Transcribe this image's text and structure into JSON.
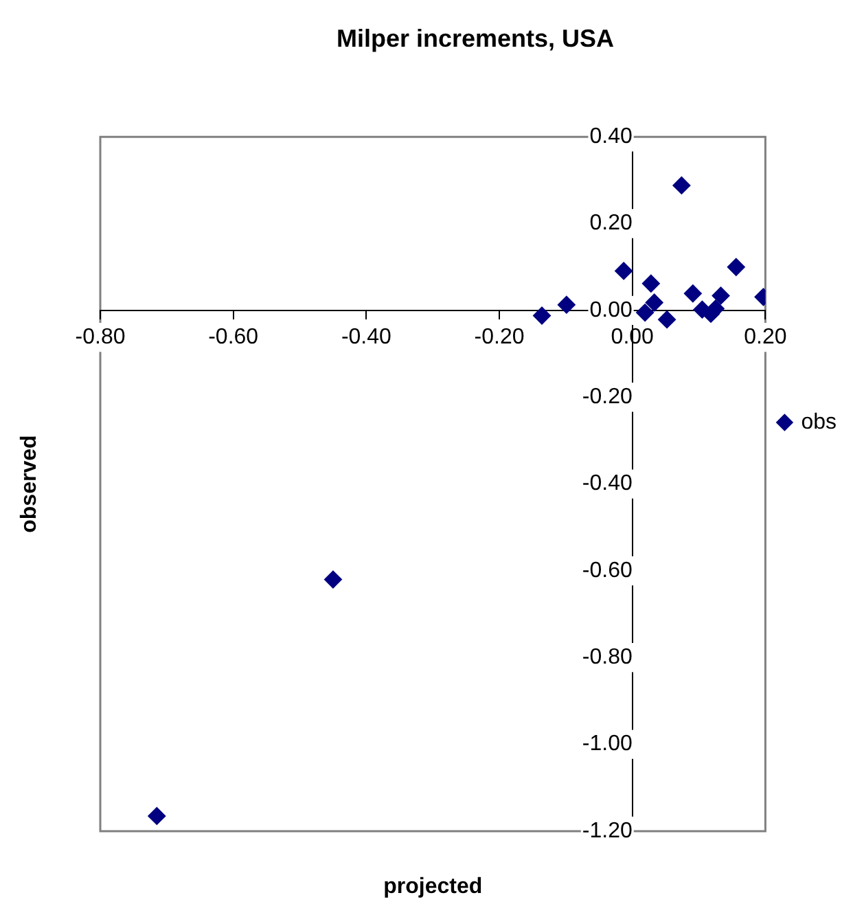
{
  "chart_data": {
    "type": "scatter",
    "title": "Milper increments, USA",
    "xlabel": "projected",
    "ylabel": "observed",
    "xlim": [
      -0.8,
      0.2
    ],
    "ylim": [
      -1.2,
      0.4
    ],
    "xticks": [
      {
        "value": -0.8,
        "label": "-0.80"
      },
      {
        "value": -0.6,
        "label": "-0.60"
      },
      {
        "value": -0.4,
        "label": "-0.40"
      },
      {
        "value": -0.2,
        "label": "-0.20"
      },
      {
        "value": 0,
        "label": "0.00"
      },
      {
        "value": 0.2,
        "label": "0.20"
      }
    ],
    "yticks": [
      {
        "value": -1.2,
        "label": "-1.20"
      },
      {
        "value": -1,
        "label": "-1.00"
      },
      {
        "value": -0.8,
        "label": "-0.80"
      },
      {
        "value": -0.6,
        "label": "-0.60"
      },
      {
        "value": -0.4,
        "label": "-0.40"
      },
      {
        "value": -0.2,
        "label": "-0.20"
      },
      {
        "value": 0,
        "label": "0.00"
      },
      {
        "value": 0.2,
        "label": "0.20"
      },
      {
        "value": 0.4,
        "label": "0.40"
      }
    ],
    "grid": false,
    "legend": "right",
    "marker": "diamond",
    "series": [
      {
        "name": "obs",
        "color": "#000080",
        "x": [
          -0.715,
          -0.45,
          -0.136,
          -0.099,
          -0.013,
          0.028,
          0.033,
          0.019,
          0.052,
          0.074,
          0.091,
          0.105,
          0.118,
          0.125,
          0.133,
          0.156,
          0.197
        ],
        "values": [
          -1.165,
          -0.62,
          -0.012,
          0.013,
          0.091,
          0.062,
          0.018,
          -0.005,
          -0.021,
          0.288,
          0.039,
          0.002,
          -0.008,
          0.004,
          0.034,
          0.1,
          0.031
        ]
      }
    ]
  }
}
